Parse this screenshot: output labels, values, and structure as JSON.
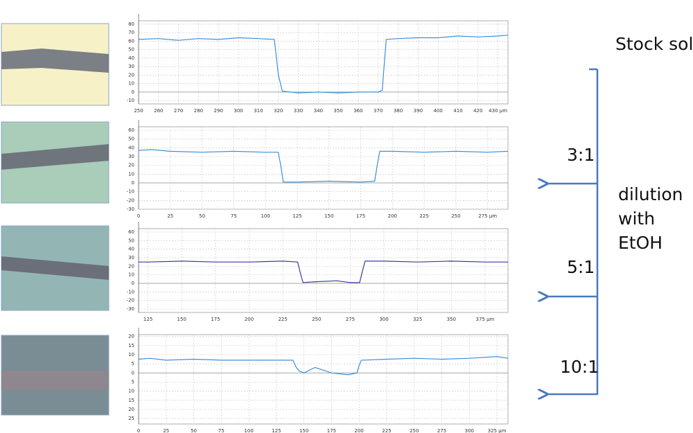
{
  "chart_data": [
    {
      "type": "line",
      "color": "#3b8fd9",
      "annotation": "Stock solution",
      "x": [
        250,
        260,
        270,
        280,
        290,
        300,
        310,
        318,
        320,
        322,
        330,
        340,
        350,
        360,
        370,
        372,
        374,
        380,
        390,
        400,
        410,
        420,
        430,
        435
      ],
      "values": [
        62,
        63,
        61,
        63,
        62,
        64,
        63,
        62,
        20,
        1,
        -1,
        0,
        -1,
        0,
        0,
        2,
        62,
        63,
        64,
        64,
        66,
        65,
        66,
        67
      ],
      "xlim": [
        250,
        435
      ],
      "xticks": [
        250,
        260,
        270,
        280,
        290,
        300,
        310,
        320,
        330,
        340,
        350,
        360,
        370,
        380,
        390,
        400,
        410,
        420,
        {
          "value": 430,
          "label": "430 µm"
        }
      ],
      "ylim": [
        -14,
        84
      ],
      "yticks": [
        -10,
        0,
        10,
        20,
        30,
        40,
        50,
        60,
        70,
        80
      ],
      "grid": true
    },
    {
      "type": "line",
      "color": "#3b8fd9",
      "annotation": "3:1",
      "x": [
        0,
        10,
        25,
        50,
        75,
        100,
        110,
        112,
        114,
        125,
        150,
        175,
        186,
        188,
        190,
        200,
        225,
        250,
        275,
        291
      ],
      "values": [
        37,
        38,
        36,
        35,
        36,
        35,
        35,
        20,
        1,
        1,
        2,
        1,
        2,
        20,
        36,
        36,
        35,
        36,
        35,
        36
      ],
      "xlim": [
        0,
        291
      ],
      "xticks": [
        0,
        25,
        50,
        75,
        100,
        125,
        150,
        175,
        200,
        225,
        250,
        {
          "value": 275,
          "label": "275 µm"
        }
      ],
      "ylim": [
        -30,
        64
      ],
      "yticks": [
        -30,
        -20,
        -10,
        0,
        10,
        20,
        30,
        40,
        50,
        60
      ],
      "grid": true
    },
    {
      "type": "line",
      "color": "#3a3aa8",
      "annotation": "5:1",
      "x": [
        118,
        125,
        150,
        175,
        200,
        225,
        236,
        238,
        240,
        250,
        265,
        275,
        282,
        284,
        286,
        300,
        325,
        350,
        375,
        392
      ],
      "values": [
        25,
        25,
        26,
        25,
        25,
        26,
        25,
        12,
        1,
        2,
        3,
        1,
        1,
        14,
        26,
        26,
        25,
        26,
        25,
        25
      ],
      "xlim": [
        118,
        392
      ],
      "xticks": [
        125,
        150,
        175,
        200,
        225,
        250,
        275,
        300,
        325,
        350,
        {
          "value": 375,
          "label": "375 µm"
        }
      ],
      "ylim": [
        -34,
        64
      ],
      "yticks": [
        -30,
        -20,
        -10,
        0,
        10,
        20,
        30,
        40,
        50,
        60
      ],
      "grid": true
    },
    {
      "type": "line",
      "color": "#3b8fd9",
      "annotation": "10:1",
      "x": [
        0,
        10,
        25,
        50,
        75,
        100,
        125,
        140,
        143,
        146,
        150,
        160,
        175,
        190,
        198,
        200,
        202,
        225,
        250,
        275,
        300,
        325,
        335
      ],
      "values": [
        7.5,
        8,
        7,
        7.5,
        7,
        7,
        7,
        7,
        3,
        1,
        0,
        3,
        0,
        -1,
        0,
        4,
        7,
        7.5,
        8,
        7.5,
        8,
        9,
        8
      ],
      "xlim": [
        0,
        335
      ],
      "xticks": [
        0,
        25,
        50,
        75,
        100,
        125,
        150,
        175,
        200,
        225,
        250,
        275,
        300,
        {
          "value": 325,
          "label": "325 µm"
        }
      ],
      "ylim": [
        -28,
        21
      ],
      "yticks": [
        {
          "value": -25,
          "label": "25"
        },
        {
          "value": -20,
          "label": "20"
        },
        {
          "value": -15,
          "label": "15"
        },
        {
          "value": -10,
          "label": "10"
        },
        {
          "value": -5,
          "label": "5"
        },
        0,
        5,
        10,
        15,
        20
      ],
      "grid": true
    }
  ],
  "side_label": [
    "dilution",
    "with",
    "EtOH"
  ]
}
